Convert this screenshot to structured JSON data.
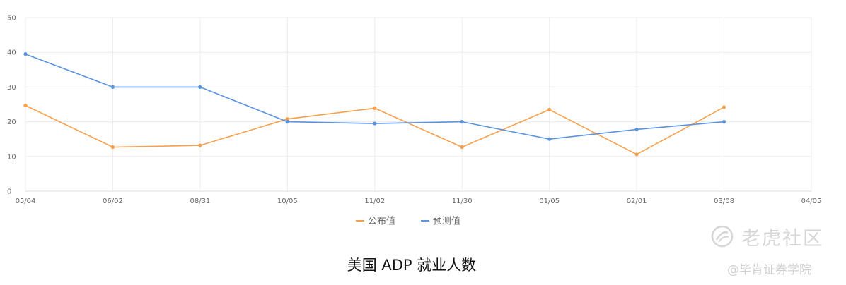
{
  "chart_data": {
    "type": "line",
    "title": "美国 ADP 就业人数",
    "xlabel": "",
    "ylabel": "",
    "categories": [
      "05/04",
      "06/02",
      "08/31",
      "10/05",
      "11/02",
      "11/30",
      "01/05",
      "02/01",
      "03/08",
      "04/05"
    ],
    "ylim": [
      0,
      50
    ],
    "yticks": [
      0,
      10,
      20,
      30,
      40,
      50
    ],
    "grid": true,
    "legend_position": "bottom-center",
    "series": [
      {
        "name": "公布值",
        "color": "#f7a04b",
        "values": [
          24.7,
          12.7,
          13.2,
          20.8,
          23.9,
          12.7,
          23.5,
          10.6,
          24.2,
          null
        ]
      },
      {
        "name": "预测值",
        "color": "#5b93e0",
        "values": [
          39.5,
          30.0,
          30.0,
          20.0,
          19.5,
          20.0,
          15.0,
          17.8,
          20.0,
          null
        ]
      }
    ]
  },
  "watermark": {
    "logo_text": "老虎社区",
    "credit": "@毕肯证券学院"
  }
}
